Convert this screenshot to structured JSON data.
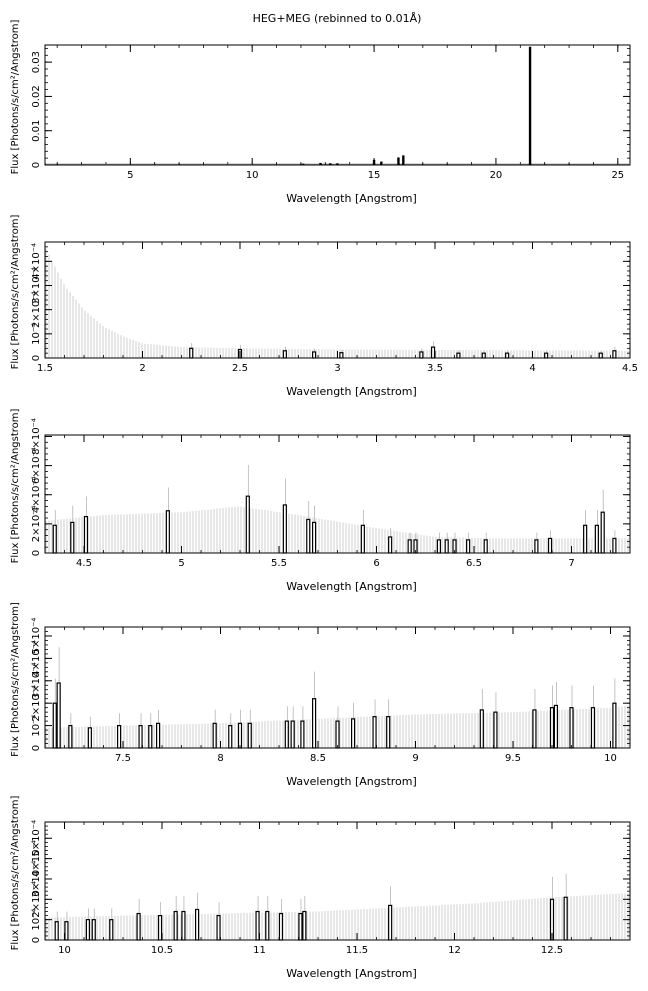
{
  "title": "HEG+MEG (rebinned to 0.01Å)",
  "chart_data": [
    {
      "type": "bar",
      "xlabel": "Wavelength [Angstrom]",
      "ylabel": "Flux [Photons/s/cm²/Angstrom]",
      "xlim": [
        1.5,
        25.5
      ],
      "ylim": [
        0,
        0.035
      ],
      "xticks": [
        5,
        10,
        15,
        20,
        25
      ],
      "yticks": [
        0,
        0.01,
        0.02,
        0.03
      ],
      "ytick_labels": [
        "0",
        "0.01",
        "0.02",
        "0.03"
      ],
      "baseline": [
        [
          1.5,
          0.0004
        ],
        [
          25.5,
          0.0004
        ]
      ],
      "lines": [
        [
          12.1,
          0.0004
        ],
        [
          12.8,
          0.0006
        ],
        [
          13.2,
          0.0005
        ],
        [
          13.5,
          0.0005
        ],
        [
          15.0,
          0.0015
        ],
        [
          15.3,
          0.001
        ],
        [
          16.0,
          0.0022
        ],
        [
          16.2,
          0.0028
        ],
        [
          21.4,
          0.0345
        ]
      ]
    },
    {
      "type": "bar",
      "xlabel": "Wavelength [Angstrom]",
      "ylabel": "Flux [Photons/s/cm²/Angstrom]",
      "xlim": [
        1.5,
        4.5
      ],
      "ylim": [
        0,
        0.00048
      ],
      "xticks": [
        1.5,
        2,
        2.5,
        3,
        3.5,
        4,
        4.5
      ],
      "yticks": [
        0,
        0.0001,
        0.0002,
        0.0003,
        0.0004
      ],
      "ytick_labels": [
        "0",
        "10⁻⁴",
        "2×10⁻⁴",
        "3×10⁻⁴",
        "4×10⁻⁴"
      ],
      "baseline": [
        [
          1.5,
          0.00046
        ],
        [
          1.6,
          0.0003
        ],
        [
          1.7,
          0.0002
        ],
        [
          1.8,
          0.00013
        ],
        [
          1.9,
          9e-05
        ],
        [
          2.0,
          6e-05
        ],
        [
          2.2,
          4.5e-05
        ],
        [
          2.5,
          4e-05
        ],
        [
          3.0,
          3.5e-05
        ],
        [
          4.5,
          3e-05
        ]
      ],
      "lines": [
        [
          2.25,
          4e-05
        ],
        [
          2.5,
          3.5e-05
        ],
        [
          2.73,
          3e-05
        ],
        [
          2.88,
          2.5e-05
        ],
        [
          3.02,
          2.2e-05
        ],
        [
          3.43,
          2.5e-05
        ],
        [
          3.49,
          4.5e-05
        ],
        [
          3.62,
          2e-05
        ],
        [
          3.75,
          2e-05
        ],
        [
          3.87,
          2e-05
        ],
        [
          4.07,
          2e-05
        ],
        [
          4.35,
          2e-05
        ],
        [
          4.42,
          3e-05
        ]
      ]
    },
    {
      "type": "bar",
      "xlabel": "Wavelength [Angstrom]",
      "ylabel": "Flux [Photons/s/cm²/Angstrom]",
      "xlim": [
        4.3,
        7.3
      ],
      "ylim": [
        0,
        0.00081
      ],
      "xticks": [
        4.5,
        5,
        5.5,
        6,
        6.5,
        7
      ],
      "yticks": [
        0,
        0.0002,
        0.0004,
        0.0006,
        0.0008
      ],
      "ytick_labels": [
        "0",
        "2×10⁻⁴",
        "4×10⁻⁴",
        "6×10⁻⁴",
        "8×10⁻⁴"
      ],
      "baseline": [
        [
          4.3,
          0.00022
        ],
        [
          4.6,
          0.00026
        ],
        [
          5.0,
          0.00028
        ],
        [
          5.3,
          0.00032
        ],
        [
          5.6,
          0.00026
        ],
        [
          6.0,
          0.00017
        ],
        [
          6.3,
          0.00011
        ],
        [
          6.6,
          0.0001
        ],
        [
          7.0,
          0.0001
        ],
        [
          7.3,
          0.0001
        ]
      ],
      "lines": [
        [
          4.35,
          0.00019
        ],
        [
          4.44,
          0.00021
        ],
        [
          4.51,
          0.00025
        ],
        [
          4.93,
          0.00029
        ],
        [
          5.34,
          0.00039
        ],
        [
          5.53,
          0.00033
        ],
        [
          5.65,
          0.00023
        ],
        [
          5.68,
          0.00021
        ],
        [
          5.93,
          0.00019
        ],
        [
          6.07,
          0.00011
        ],
        [
          6.17,
          9e-05
        ],
        [
          6.2,
          9e-05
        ],
        [
          6.32,
          9e-05
        ],
        [
          6.36,
          9e-05
        ],
        [
          6.4,
          9e-05
        ],
        [
          6.47,
          9e-05
        ],
        [
          6.56,
          9e-05
        ],
        [
          6.82,
          9e-05
        ],
        [
          6.89,
          0.0001
        ],
        [
          7.07,
          0.00019
        ],
        [
          7.13,
          0.00019
        ],
        [
          7.16,
          0.00028
        ],
        [
          7.22,
          0.0001
        ]
      ]
    },
    {
      "type": "bar",
      "xlabel": "Wavelength [Angstrom]",
      "ylabel": "Flux [Photons/s/cm²/Angstrom]",
      "xlim": [
        7.1,
        10.1
      ],
      "ylim": [
        0,
        0.00054
      ],
      "xticks": [
        7.5,
        8,
        8.5,
        9,
        9.5,
        10
      ],
      "yticks": [
        0,
        0.0001,
        0.0002,
        0.0003,
        0.0004,
        0.0005
      ],
      "ytick_labels": [
        "0",
        "10⁻⁴",
        "2×10⁻⁴",
        "3×10⁻⁴",
        "4×10⁻⁴",
        "5×10⁻⁴"
      ],
      "baseline": [
        [
          7.1,
          9e-05
        ],
        [
          7.5,
          0.0001
        ],
        [
          8.0,
          0.00011
        ],
        [
          8.5,
          0.00013
        ],
        [
          9.0,
          0.00015
        ],
        [
          9.5,
          0.00016
        ],
        [
          10.0,
          0.00018
        ],
        [
          10.1,
          0.00019
        ]
      ],
      "lines": [
        [
          7.15,
          0.0002
        ],
        [
          7.17,
          0.00029
        ],
        [
          7.23,
          0.0001
        ],
        [
          7.33,
          9e-05
        ],
        [
          7.48,
          0.0001
        ],
        [
          7.59,
          0.0001
        ],
        [
          7.64,
          0.0001
        ],
        [
          7.68,
          0.00011
        ],
        [
          7.97,
          0.00011
        ],
        [
          8.05,
          0.0001
        ],
        [
          8.1,
          0.00011
        ],
        [
          8.15,
          0.00011
        ],
        [
          8.34,
          0.00012
        ],
        [
          8.37,
          0.00012
        ],
        [
          8.42,
          0.00012
        ],
        [
          8.48,
          0.00022
        ],
        [
          8.6,
          0.00012
        ],
        [
          8.68,
          0.00013
        ],
        [
          8.79,
          0.00014
        ],
        [
          8.86,
          0.00014
        ],
        [
          9.34,
          0.00017
        ],
        [
          9.41,
          0.00016
        ],
        [
          9.61,
          0.00017
        ],
        [
          9.7,
          0.00018
        ],
        [
          9.72,
          0.00019
        ],
        [
          9.8,
          0.00018
        ],
        [
          9.91,
          0.00018
        ],
        [
          10.02,
          0.0002
        ]
      ]
    },
    {
      "type": "bar",
      "xlabel": "Wavelength [Angstrom]",
      "ylabel": "Flux [Photons/s/cm²/Angstrom]",
      "xlim": [
        9.9,
        12.9
      ],
      "ylim": [
        0,
        0.00058
      ],
      "xticks": [
        10,
        10.5,
        11,
        11.5,
        12,
        12.5
      ],
      "yticks": [
        0,
        0.0001,
        0.0002,
        0.0003,
        0.0004,
        0.0005
      ],
      "ytick_labels": [
        "0",
        "10⁻⁴",
        "2×10⁻⁴",
        "3×10⁻⁴",
        "4×10⁻⁴",
        "5×10⁻⁴"
      ],
      "baseline": [
        [
          9.9,
          0.00011
        ],
        [
          10.3,
          0.00012
        ],
        [
          10.8,
          0.00013
        ],
        [
          11.3,
          0.00014
        ],
        [
          11.7,
          0.00016
        ],
        [
          12.1,
          0.00018
        ],
        [
          12.5,
          0.00021
        ],
        [
          12.9,
          0.00023
        ]
      ],
      "lines": [
        [
          9.96,
          9e-05
        ],
        [
          10.01,
          9e-05
        ],
        [
          10.12,
          0.0001
        ],
        [
          10.15,
          0.0001
        ],
        [
          10.24,
          0.0001
        ],
        [
          10.38,
          0.00013
        ],
        [
          10.49,
          0.00012
        ],
        [
          10.57,
          0.00014
        ],
        [
          10.61,
          0.00014
        ],
        [
          10.68,
          0.00015
        ],
        [
          10.79,
          0.00012
        ],
        [
          10.99,
          0.00014
        ],
        [
          11.04,
          0.00014
        ],
        [
          11.11,
          0.00013
        ],
        [
          11.21,
          0.00013
        ],
        [
          11.23,
          0.00014
        ],
        [
          11.67,
          0.00017
        ],
        [
          12.5,
          0.0002
        ],
        [
          12.57,
          0.00021
        ]
      ]
    }
  ]
}
